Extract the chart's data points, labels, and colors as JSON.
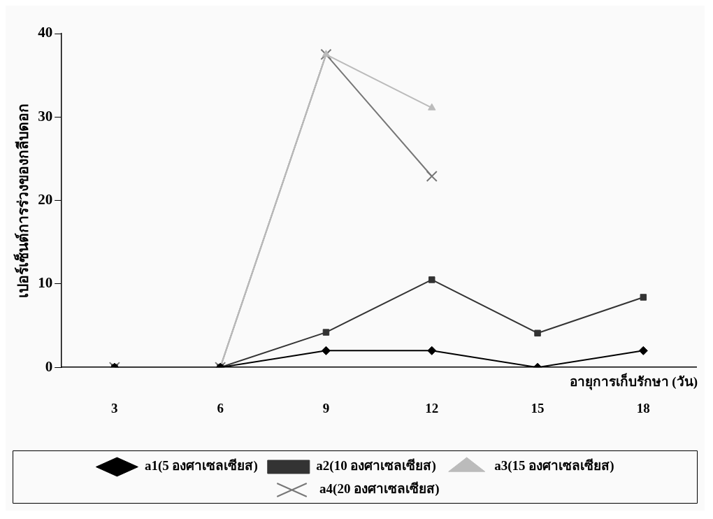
{
  "chart_data": {
    "type": "line",
    "xlabel": "อายุการเก็บรักษา (วัน)",
    "ylabel": "เปอร์เซ็นต์การร่วงของกลีบดอก",
    "categories": [
      "3",
      "6",
      "9",
      "12",
      "15",
      "18"
    ],
    "ylim": [
      0,
      40
    ],
    "yticks": [
      0,
      10,
      20,
      30,
      40
    ],
    "grid": false,
    "legend": "bottom",
    "series": [
      {
        "name": "a1(5 องศาเซลเซียส)",
        "color": "#000000",
        "marker": "diamond",
        "values": [
          0,
          0,
          2,
          2,
          0,
          2
        ]
      },
      {
        "name": "a2(10 องศาเซลเซียส)",
        "color": "#333333",
        "marker": "square",
        "values": [
          0,
          0,
          4.2,
          10.5,
          4.1,
          8.4
        ]
      },
      {
        "name": "a3(15 องศาเซลเซียส)",
        "color": "#bbbbbb",
        "marker": "triangle",
        "values": [
          0,
          0,
          37.5,
          31.1,
          null,
          null
        ]
      },
      {
        "name": "a4(20 องศาเซลเซียส)",
        "color": "#777777",
        "marker": "cross",
        "values": [
          0,
          0,
          37.5,
          22.9,
          null,
          null
        ]
      }
    ]
  }
}
